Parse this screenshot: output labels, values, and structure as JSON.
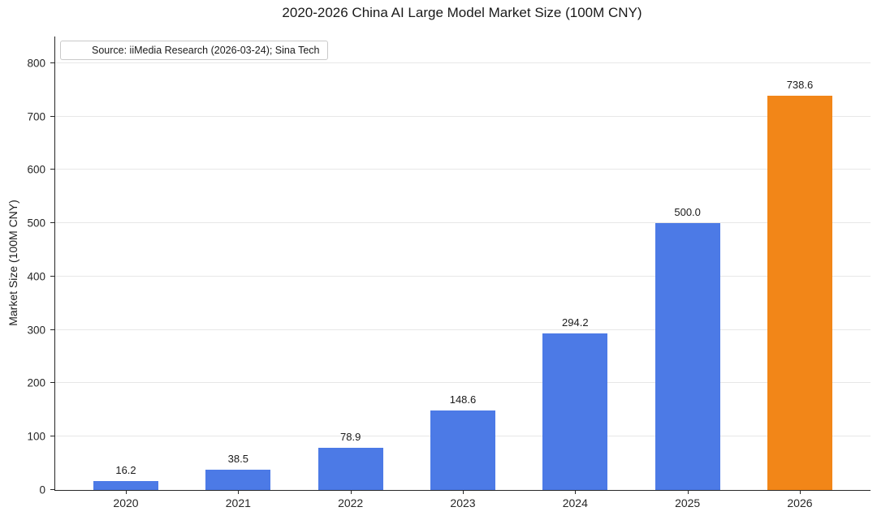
{
  "chart_data": {
    "type": "bar",
    "title": "2020-2026 China AI Large Model Market Size (100M CNY)",
    "categories": [
      "2020",
      "2021",
      "2022",
      "2023",
      "2024",
      "2025",
      "2026"
    ],
    "values": [
      16.2,
      38.5,
      78.9,
      148.6,
      294.2,
      500.0,
      738.6
    ],
    "value_labels": [
      "16.2",
      "38.5",
      "78.9",
      "148.6",
      "294.2",
      "500.0",
      "738.6"
    ],
    "xlabel": "",
    "ylabel": "Market Size (100M CNY)",
    "ylim": [
      0,
      850
    ],
    "yticks": [
      0,
      100,
      200,
      300,
      400,
      500,
      600,
      700,
      800
    ],
    "grid": true,
    "legend": null,
    "annotation": "Source: iiMedia Research (2026-03-24); Sina Tech",
    "highlight_index": 6,
    "colors": {
      "bar_default": "#4c7ae6",
      "bar_highlight": "#f28618",
      "grid": "#e7e7e7",
      "axis": "#262626",
      "text": "#1a1a1a"
    }
  }
}
